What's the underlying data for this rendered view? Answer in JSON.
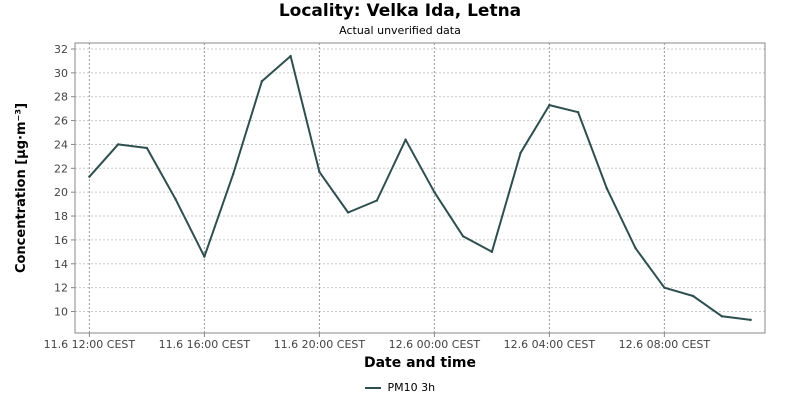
{
  "chart_data": {
    "type": "line",
    "title": "Locality: Velka Ida, Letna",
    "subtitle": "Actual unverified data",
    "xlabel": "Date and time",
    "ylabel": "Concentration [µg·m⁻³]",
    "ylim": [
      8.2,
      32.5
    ],
    "yticks": [
      10,
      12,
      14,
      16,
      18,
      20,
      22,
      24,
      26,
      28,
      30,
      32
    ],
    "xticks": [
      {
        "hour": 0,
        "label": "11.6 12:00 CEST"
      },
      {
        "hour": 4,
        "label": "11.6 16:00 CEST"
      },
      {
        "hour": 8,
        "label": "11.6 20:00 CEST"
      },
      {
        "hour": 12,
        "label": "12.6 00:00 CEST"
      },
      {
        "hour": 16,
        "label": "12.6 04:00 CEST"
      },
      {
        "hour": 20,
        "label": "12.6 08:00 CEST"
      }
    ],
    "xlim": [
      -0.5,
      23.5
    ],
    "grid": true,
    "legend_position": "bottom",
    "series": [
      {
        "name": "PM10 3h",
        "color": "#2f4f4f",
        "x": [
          0,
          1,
          2,
          3,
          4,
          5,
          6,
          7,
          8,
          9,
          10,
          11,
          12,
          13,
          14,
          15,
          16,
          17,
          18,
          19,
          20,
          21,
          22,
          23
        ],
        "y": [
          21.3,
          24.0,
          23.7,
          19.4,
          14.6,
          21.5,
          29.3,
          31.4,
          21.7,
          18.3,
          19.3,
          24.4,
          20.0,
          16.3,
          15.0,
          23.3,
          27.3,
          26.7,
          20.3,
          15.3,
          12.0,
          11.3,
          9.6,
          9.3
        ]
      }
    ]
  }
}
